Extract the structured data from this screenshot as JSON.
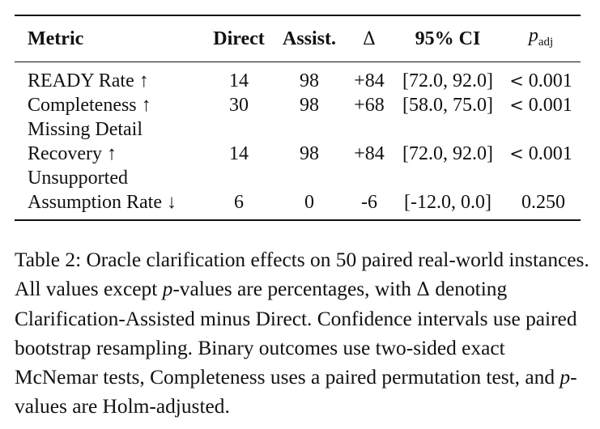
{
  "table": {
    "headers": {
      "metric": "Metric",
      "direct": "Direct",
      "assist": "Assist.",
      "delta": "Δ",
      "ci": "95% CI",
      "p_main": "p",
      "p_sub": "adj"
    },
    "rows": [
      {
        "metric": "READY Rate ↑",
        "metric2": "",
        "direct": "14",
        "assist": "98",
        "delta": "+84",
        "ci": "[72.0, 92.0]",
        "p_lt": "<",
        "p": "0.001"
      },
      {
        "metric": "Completeness ↑",
        "metric2": "Missing Detail",
        "direct": "30",
        "assist": "98",
        "delta": "+68",
        "ci": "[58.0, 75.0]",
        "p_lt": "<",
        "p": "0.001"
      },
      {
        "metric": "Recovery ↑",
        "metric2": "Unsupported",
        "direct": "14",
        "assist": "98",
        "delta": "+84",
        "ci": "[72.0, 92.0]",
        "p_lt": "<",
        "p": "0.001"
      },
      {
        "metric": "Assumption Rate ↓",
        "metric2": "",
        "direct": "6",
        "assist": "0",
        "delta": "-6",
        "ci": "[-12.0, 0.0]",
        "p_lt": "",
        "p": "0.250"
      }
    ]
  },
  "caption": {
    "part1": "Table 2: Oracle clarification effects on 50 paired real-world instances. All values except ",
    "p1": "p",
    "part2": "-values are percentages, with ",
    "delta": "Δ",
    "part3": " denoting Clarification-Assisted minus Direct. Confidence intervals use paired bootstrap resampling. Binary outcomes use two-sided exact McNemar tests, Completeness uses a paired permutation test, and ",
    "p2": "p",
    "part4": "-values are Holm-adjusted."
  }
}
